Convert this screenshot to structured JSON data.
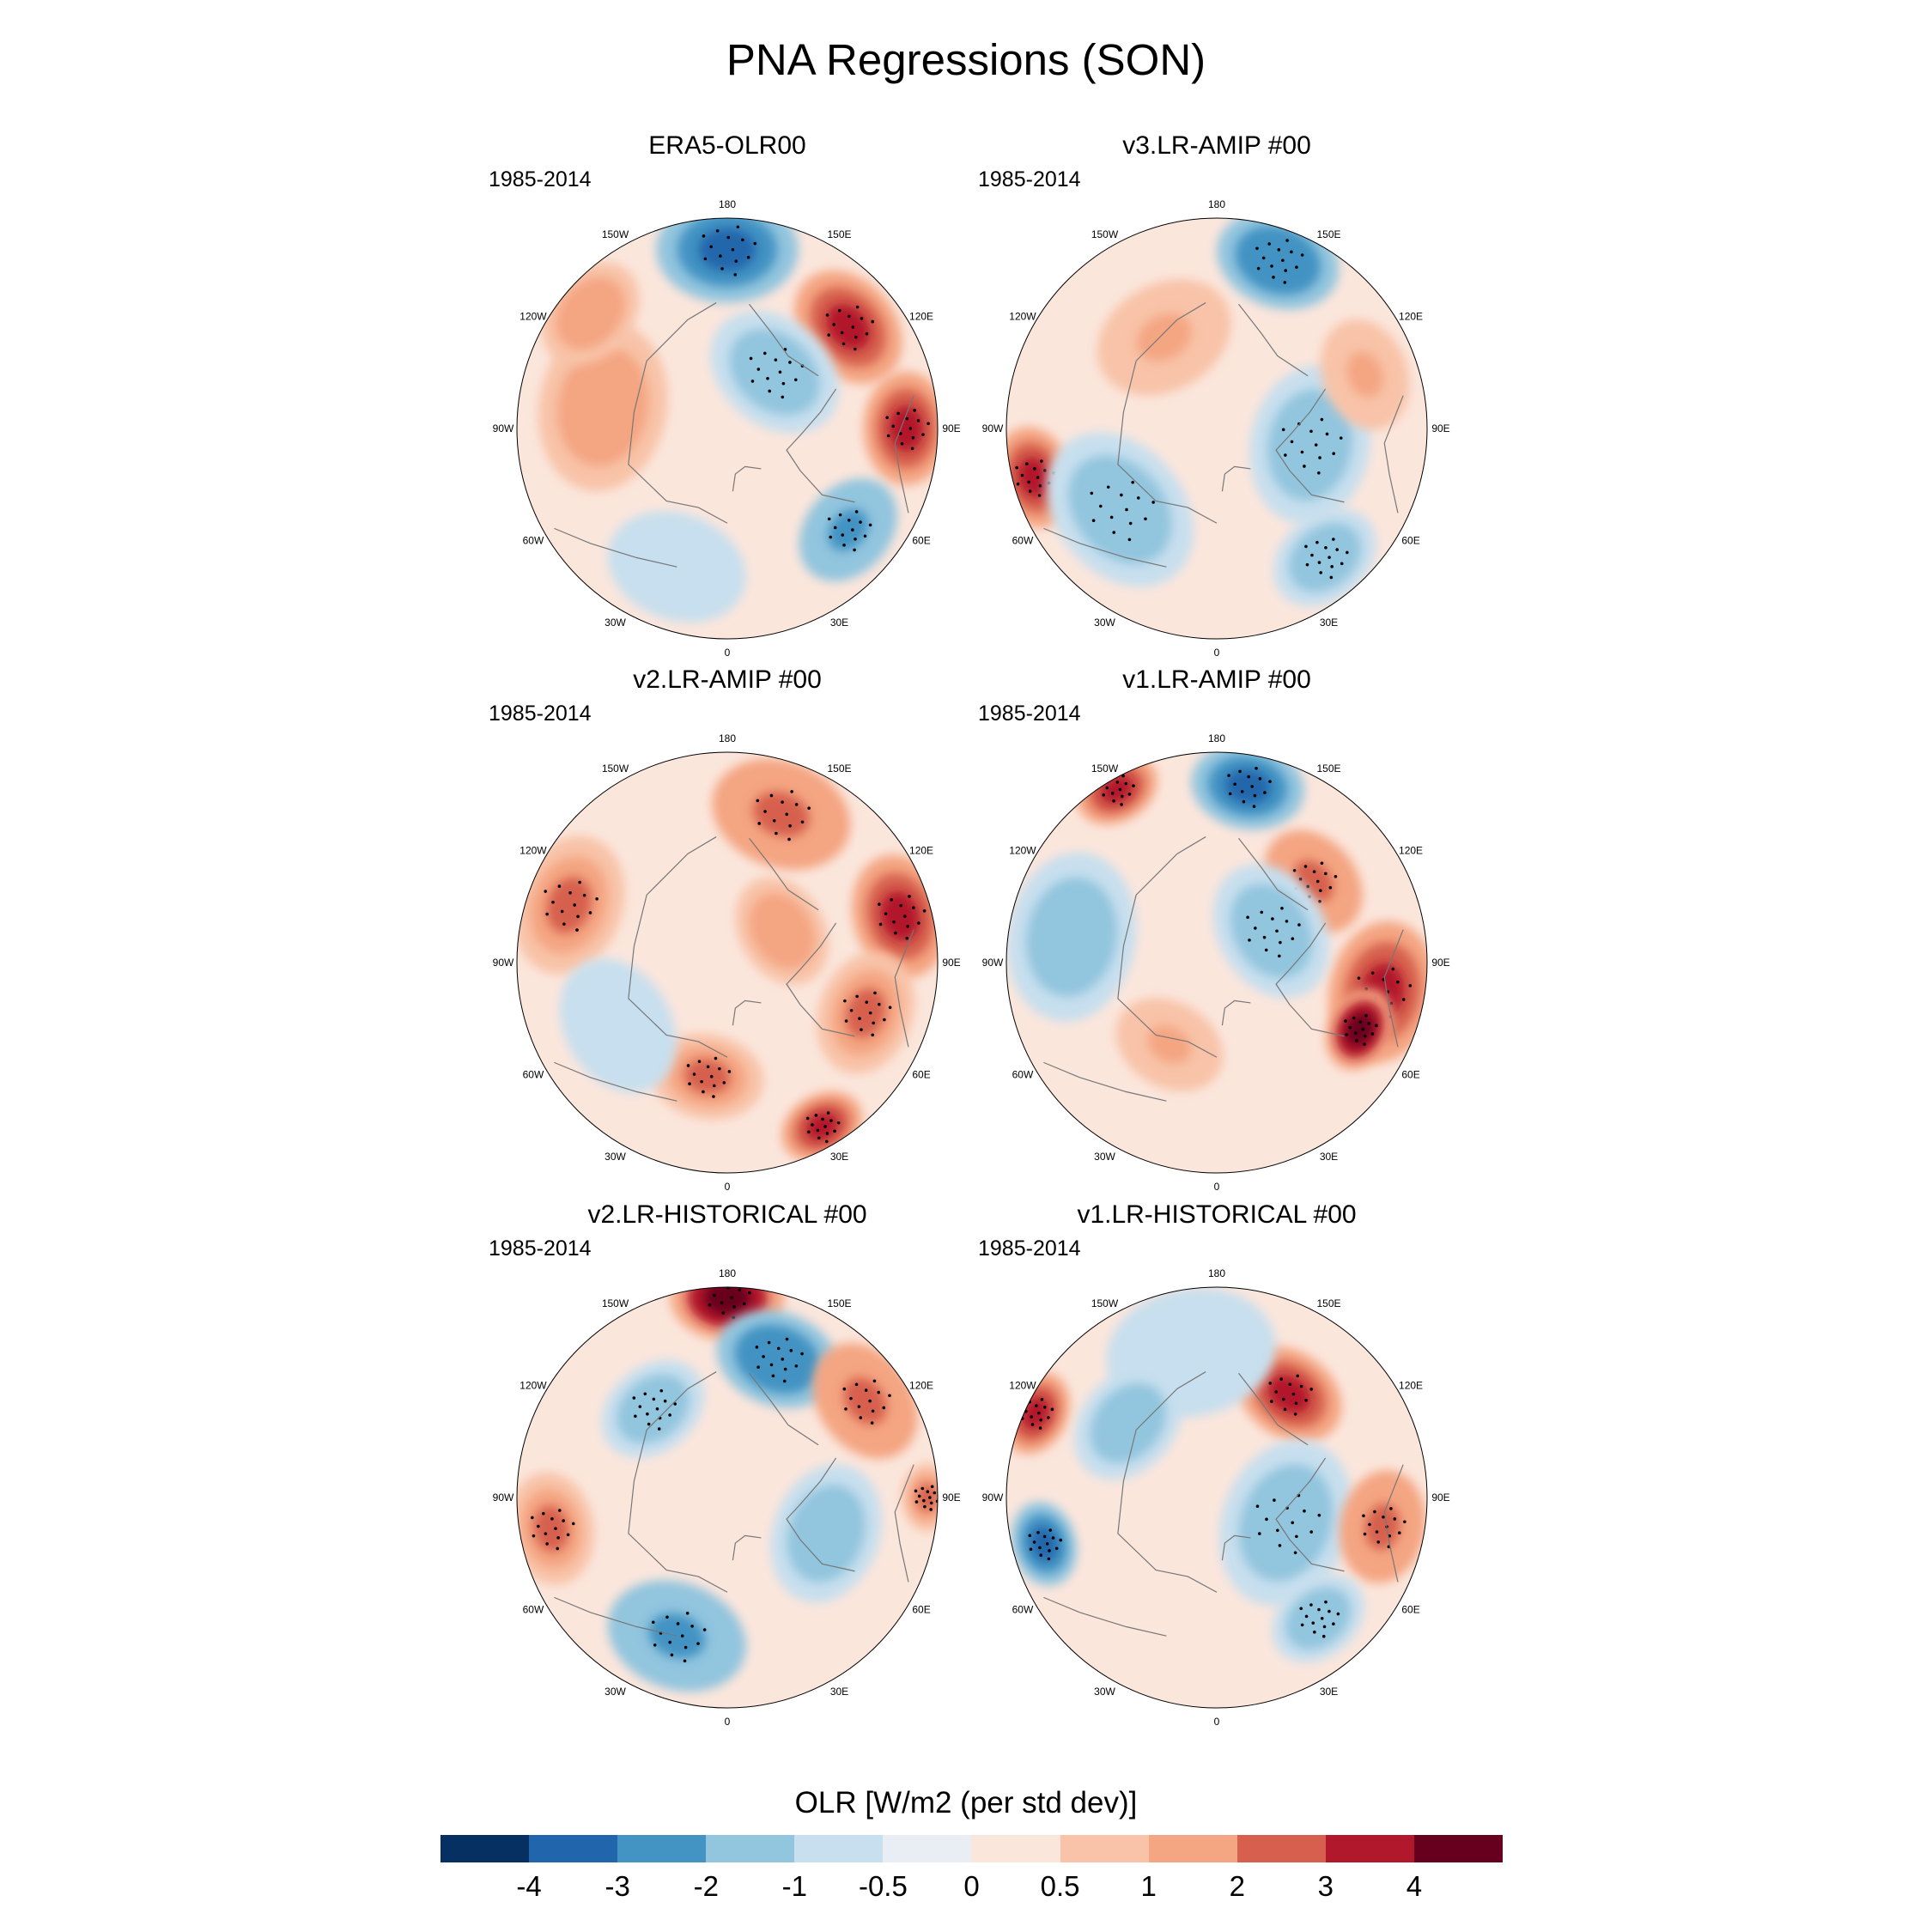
{
  "title": "PNA Regressions (SON)",
  "period": "1985-2014",
  "panels": [
    {
      "title": "ERA5-OLR00",
      "period": "1985-2014",
      "features": [
        {
          "lon": 180,
          "colat": 0.85,
          "v": -4,
          "r": 0.25
        },
        {
          "lon": 230,
          "colat": 0.75,
          "v": 3,
          "r": 0.22
        },
        {
          "lon": 270,
          "colat": 0.85,
          "v": 3.5,
          "r": 0.2
        },
        {
          "lon": 310,
          "colat": 0.75,
          "v": -2.5,
          "r": 0.2
        },
        {
          "lon": 220,
          "colat": 0.35,
          "v": -2,
          "r": 0.25
        },
        {
          "lon": 100,
          "colat": 0.6,
          "v": 1.5,
          "r": 0.3
        },
        {
          "lon": 130,
          "colat": 0.85,
          "v": 1.5,
          "r": 0.2
        },
        {
          "lon": 20,
          "colat": 0.7,
          "v": -0.8,
          "r": 0.25
        }
      ]
    },
    {
      "title": "v3.LR-AMIP  #00",
      "period": "1985-2014",
      "features": [
        {
          "lon": 200,
          "colat": 0.85,
          "v": -3,
          "r": 0.22
        },
        {
          "lon": 280,
          "colat": 0.45,
          "v": -2,
          "r": 0.28
        },
        {
          "lon": 75,
          "colat": 0.9,
          "v": 3.5,
          "r": 0.18
        },
        {
          "lon": 50,
          "colat": 0.6,
          "v": -2,
          "r": 0.3
        },
        {
          "lon": 320,
          "colat": 0.8,
          "v": -2,
          "r": 0.2
        },
        {
          "lon": 150,
          "colat": 0.5,
          "v": 1,
          "r": 0.25
        },
        {
          "lon": 250,
          "colat": 0.75,
          "v": 1,
          "r": 0.2
        }
      ]
    },
    {
      "title": "v2.LR-AMIP  #00",
      "period": "1985-2014",
      "features": [
        {
          "lon": 200,
          "colat": 0.75,
          "v": 2.5,
          "r": 0.25
        },
        {
          "lon": 255,
          "colat": 0.85,
          "v": 3,
          "r": 0.22
        },
        {
          "lon": 290,
          "colat": 0.7,
          "v": 2,
          "r": 0.22
        },
        {
          "lon": 330,
          "colat": 0.9,
          "v": 3,
          "r": 0.15
        },
        {
          "lon": 110,
          "colat": 0.8,
          "v": 2,
          "r": 0.25
        },
        {
          "lon": 10,
          "colat": 0.55,
          "v": 2,
          "r": 0.2
        },
        {
          "lon": 240,
          "colat": 0.3,
          "v": 1.5,
          "r": 0.2
        },
        {
          "lon": 60,
          "colat": 0.6,
          "v": -0.8,
          "r": 0.25
        }
      ]
    },
    {
      "title": "v1.LR-AMIP  #00",
      "period": "1985-2014",
      "features": [
        {
          "lon": 190,
          "colat": 0.85,
          "v": -4,
          "r": 0.2
        },
        {
          "lon": 150,
          "colat": 0.95,
          "v": 3,
          "r": 0.15
        },
        {
          "lon": 230,
          "colat": 0.6,
          "v": 2.5,
          "r": 0.2
        },
        {
          "lon": 280,
          "colat": 0.8,
          "v": 3,
          "r": 0.25
        },
        {
          "lon": 295,
          "colat": 0.75,
          "v": 4,
          "r": 0.15
        },
        {
          "lon": 240,
          "colat": 0.3,
          "v": -2,
          "r": 0.25
        },
        {
          "lon": 100,
          "colat": 0.7,
          "v": -1.5,
          "r": 0.3
        },
        {
          "lon": 30,
          "colat": 0.45,
          "v": 1,
          "r": 0.2
        }
      ]
    },
    {
      "title": "v2.LR-HISTORICAL  #00",
      "period": "1985-2014",
      "features": [
        {
          "lon": 180,
          "colat": 0.95,
          "v": 4,
          "r": 0.2
        },
        {
          "lon": 200,
          "colat": 0.7,
          "v": -3,
          "r": 0.22
        },
        {
          "lon": 235,
          "colat": 0.8,
          "v": 2.5,
          "r": 0.22
        },
        {
          "lon": 270,
          "colat": 0.95,
          "v": 2,
          "r": 0.12
        },
        {
          "lon": 140,
          "colat": 0.55,
          "v": -2,
          "r": 0.2
        },
        {
          "lon": 20,
          "colat": 0.7,
          "v": -2.5,
          "r": 0.25
        },
        {
          "lon": 290,
          "colat": 0.5,
          "v": -1.5,
          "r": 0.25
        },
        {
          "lon": 80,
          "colat": 0.85,
          "v": 2,
          "r": 0.2
        }
      ]
    },
    {
      "title": "v1.LR-HISTORICAL  #00",
      "period": "1985-2014",
      "features": [
        {
          "lon": 215,
          "colat": 0.6,
          "v": 3.5,
          "r": 0.2
        },
        {
          "lon": 170,
          "colat": 0.7,
          "v": -1,
          "r": 0.3
        },
        {
          "lon": 290,
          "colat": 0.35,
          "v": -2,
          "r": 0.3
        },
        {
          "lon": 75,
          "colat": 0.85,
          "v": -3.5,
          "r": 0.15
        },
        {
          "lon": 115,
          "colat": 0.95,
          "v": 3,
          "r": 0.15
        },
        {
          "lon": 280,
          "colat": 0.8,
          "v": 2.5,
          "r": 0.2
        },
        {
          "lon": 320,
          "colat": 0.75,
          "v": -2,
          "r": 0.18
        },
        {
          "lon": 130,
          "colat": 0.55,
          "v": -1.5,
          "r": 0.22
        }
      ]
    }
  ],
  "lon_labels": [
    "180",
    "150E",
    "120E",
    "90E",
    "60E",
    "30E",
    "0",
    "30W",
    "60W",
    "90W",
    "120W",
    "150W"
  ],
  "colorbar": {
    "title": "OLR [W/m2 (per std dev)]",
    "colors": [
      "#053061",
      "#2166ac",
      "#4393c3",
      "#92c5de",
      "#c7dfee",
      "#e8eef3",
      "#fbe6dc",
      "#f8c3a8",
      "#f4a582",
      "#d6604d",
      "#b2182b",
      "#67001f"
    ],
    "levels": [
      -4,
      -3,
      -2,
      -1,
      -0.5,
      0,
      0.5,
      1,
      2,
      3,
      4
    ],
    "tick_labels": [
      "-4",
      "-3",
      "-2",
      "-1",
      "-0.5",
      "0",
      "0.5",
      "1",
      "2",
      "3",
      "4"
    ]
  }
}
